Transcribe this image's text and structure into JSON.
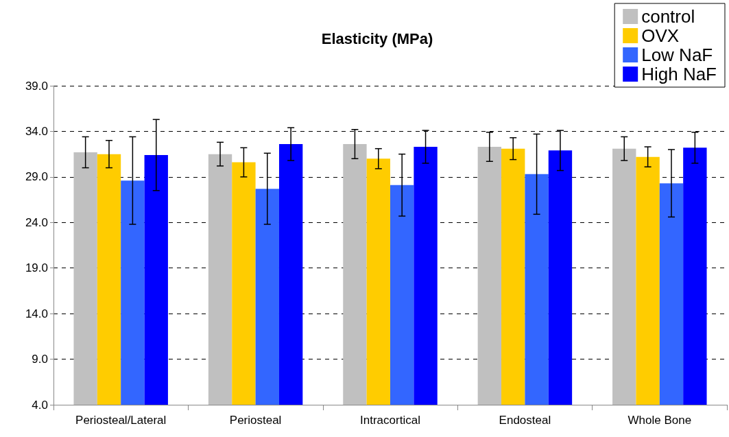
{
  "chart_data": {
    "type": "bar",
    "title": "Elasticity (MPa)",
    "categories": [
      "Periosteal/Lateral",
      "Periosteal",
      "Intracortical",
      "Endosteal",
      "Whole Bone"
    ],
    "series": [
      {
        "name": "control",
        "color": "#c0c0c0",
        "values": [
          31.7,
          31.5,
          32.6,
          32.3,
          32.1
        ],
        "errors": [
          1.7,
          1.3,
          1.6,
          1.6,
          1.3
        ]
      },
      {
        "name": "OVX",
        "color": "#ffcc00",
        "values": [
          31.5,
          30.6,
          31.0,
          32.1,
          31.2
        ],
        "errors": [
          1.5,
          1.6,
          1.1,
          1.2,
          1.1
        ]
      },
      {
        "name": "Low NaF",
        "color": "#3366ff",
        "values": [
          28.6,
          27.7,
          28.1,
          29.3,
          28.3
        ],
        "errors": [
          4.8,
          3.9,
          3.4,
          4.4,
          3.7
        ]
      },
      {
        "name": "High NaF",
        "color": "#0000ff",
        "values": [
          31.4,
          32.6,
          32.3,
          31.9,
          32.2
        ],
        "errors": [
          3.9,
          1.8,
          1.8,
          2.2,
          1.7
        ]
      }
    ],
    "ylim": [
      4,
      39
    ],
    "yticks": [
      {
        "value": 4,
        "label": "4.0"
      },
      {
        "value": 9,
        "label": "9.0"
      },
      {
        "value": 14,
        "label": "14.0"
      },
      {
        "value": 19,
        "label": "19.0"
      },
      {
        "value": 24,
        "label": "24.0"
      },
      {
        "value": 29,
        "label": "29.0"
      },
      {
        "value": 34,
        "label": "34.0"
      },
      {
        "value": 39,
        "label": "39.0"
      }
    ],
    "grid": "y",
    "legend": "top right"
  }
}
